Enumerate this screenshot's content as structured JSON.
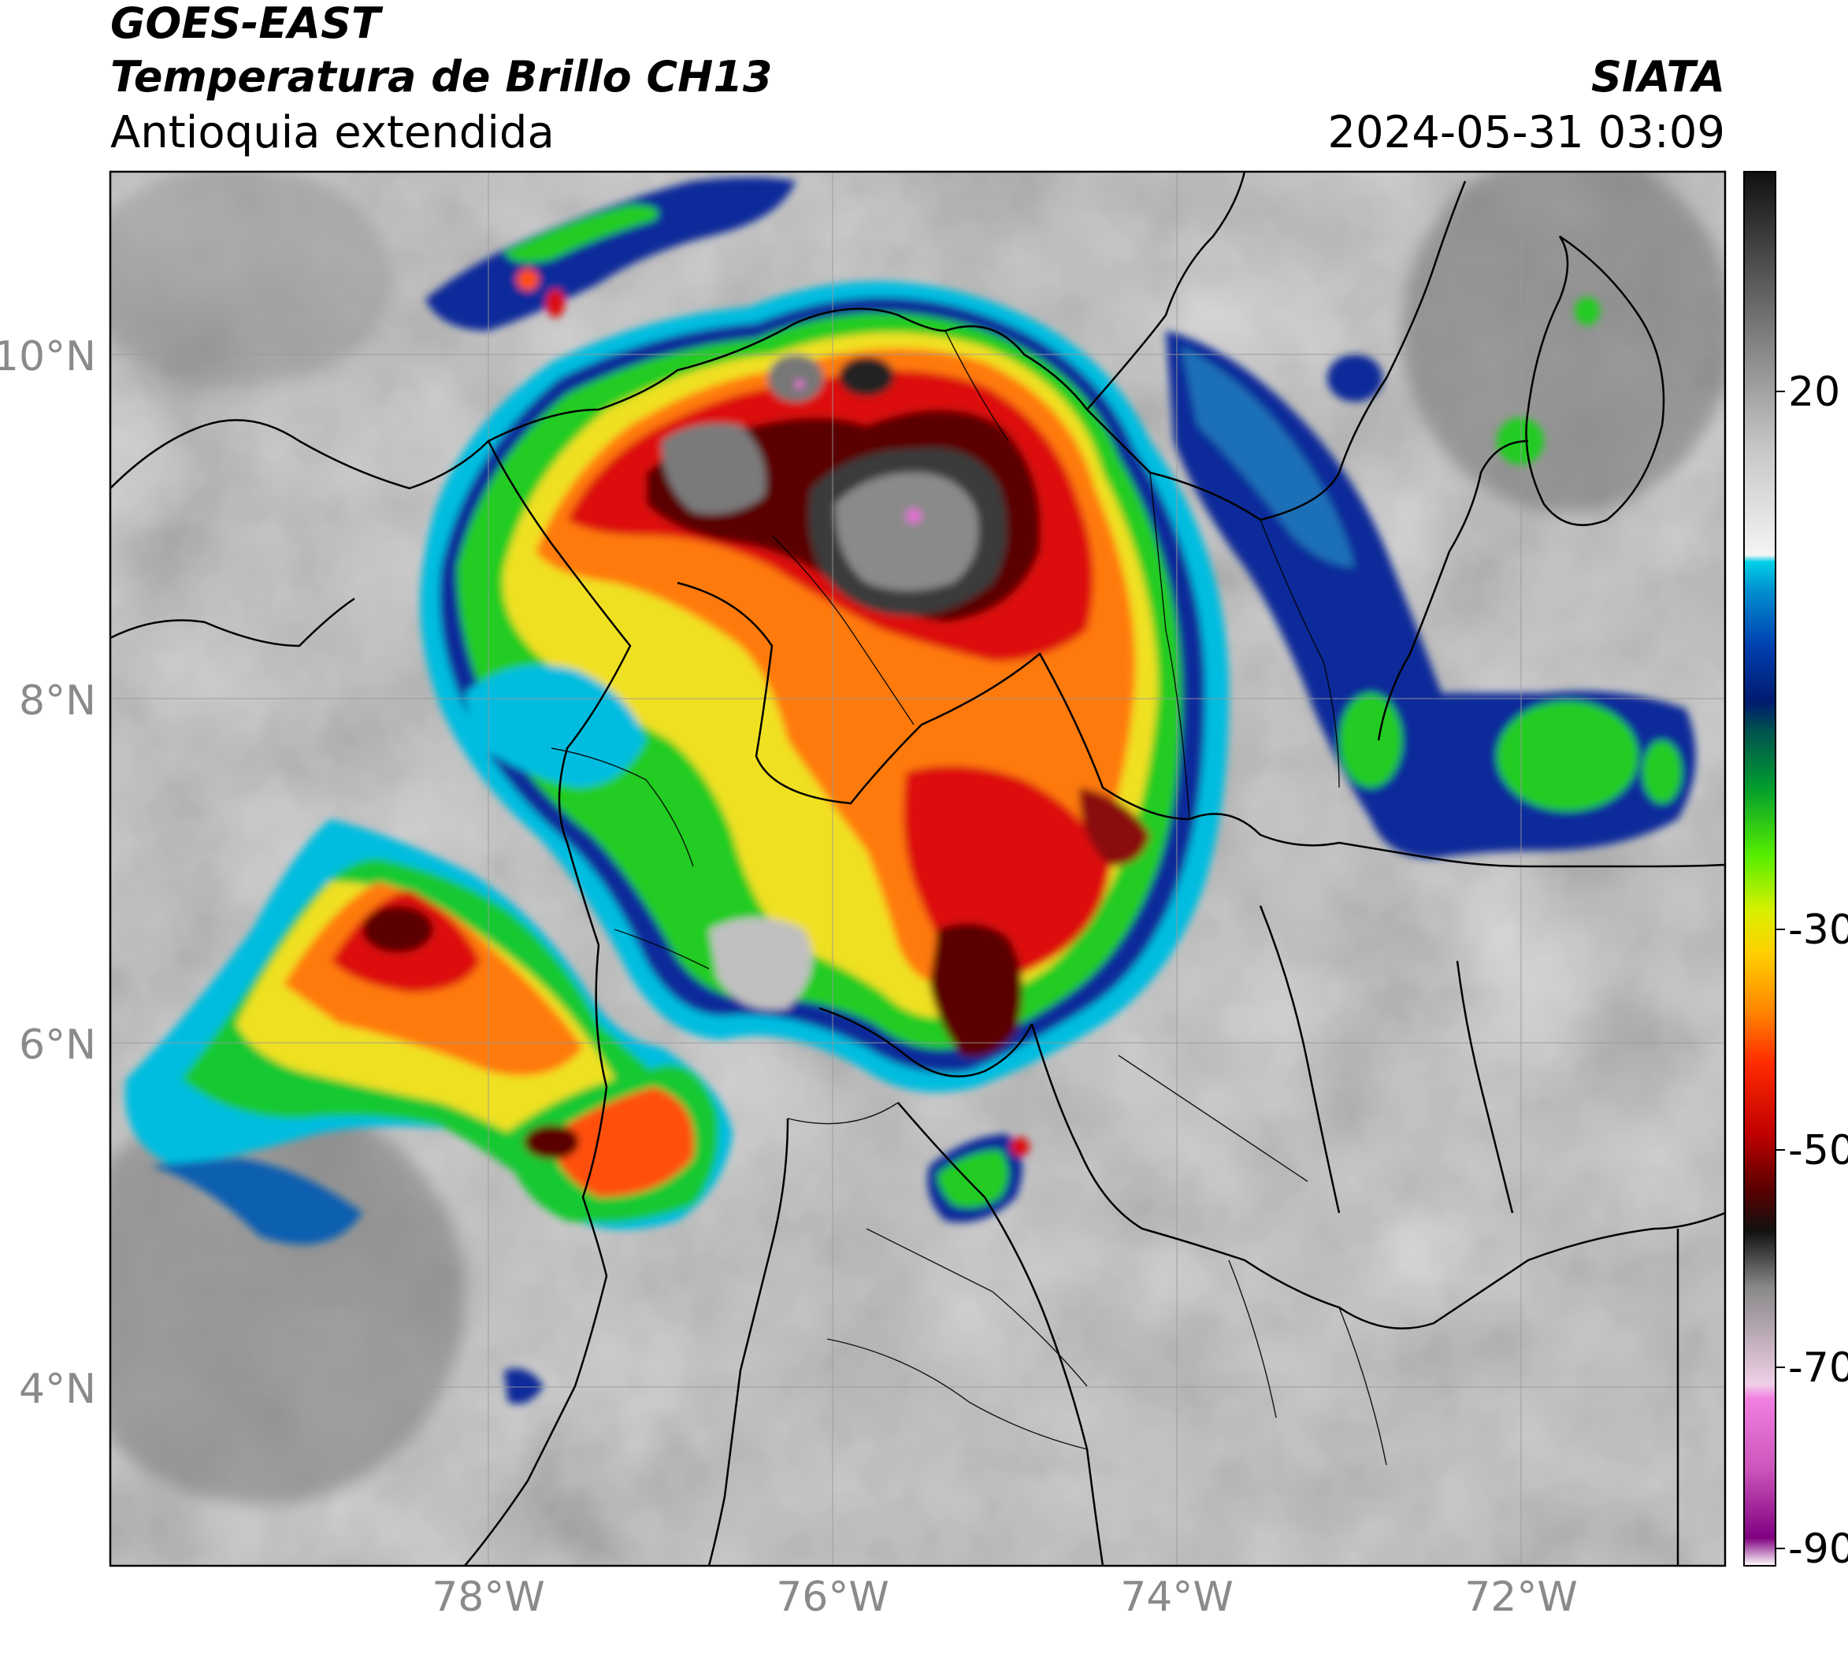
{
  "header": {
    "satellite": "GOES-EAST",
    "product": "Temperatura de Brillo CH13",
    "region": "Antioquia extendida",
    "agency": "SIATA",
    "datetime": "2024-05-31 03:09"
  },
  "axes": {
    "lat_ticks": [
      "10°N",
      "8°N",
      "6°N",
      "4°N"
    ],
    "lon_ticks": [
      "78°W",
      "76°W",
      "74°W",
      "72°W"
    ]
  },
  "colorbar": {
    "tick_labels": [
      "20",
      "-30",
      "-50",
      "-70",
      "-90"
    ],
    "range": [
      -90,
      35
    ],
    "units_implied": "°C"
  },
  "map": {
    "lon_range": [
      -80.2,
      -70.8
    ],
    "lat_range": [
      2.7,
      11.0
    ],
    "colors": {
      "clear_sky": "#b8b8b8",
      "cold_top": "#3a3a3a",
      "cyan": "#00c8e8",
      "blue": "#0a2a9a",
      "green": "#22cc22",
      "yellow": "#f0e020",
      "orange": "#ff7a10",
      "red": "#dd1010",
      "dark_red": "#5a0505",
      "magenta": "#e070d0"
    }
  }
}
